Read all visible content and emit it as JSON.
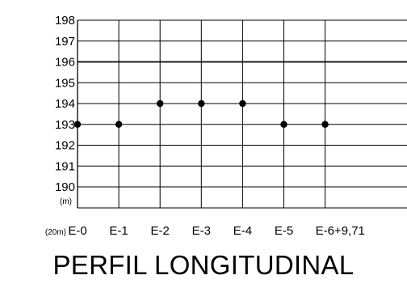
{
  "chart_data": {
    "type": "scatter",
    "title": "PERFIL LONGITUDINAL",
    "categories": [
      "E-0",
      "E-1",
      "E-2",
      "E-3",
      "E-4",
      "E-5",
      "E-6+9,71"
    ],
    "values": [
      193,
      193,
      194,
      194,
      194,
      193,
      193
    ],
    "ylabel": "(m)",
    "xlabel": "(20m)",
    "yticks": [
      "198",
      "197",
      "196",
      "195",
      "194",
      "193",
      "192",
      "191",
      "190"
    ],
    "ylim": [
      189,
      198
    ],
    "emphasized_gridline": 196,
    "grid": true,
    "colors": {
      "lines": "#000000",
      "points": "#000000"
    }
  }
}
